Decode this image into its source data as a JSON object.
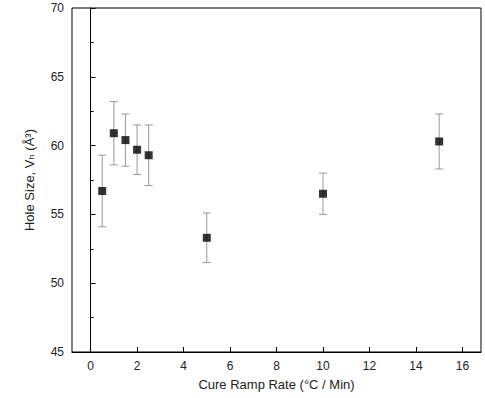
{
  "chart_data": {
    "type": "scatter",
    "x_label": "Cure Ramp Rate (°C / Min)",
    "y_label": "Hole Size, Vₕ (Å³)",
    "x": [
      0.5,
      1,
      1.5,
      2,
      2.5,
      5,
      10,
      15
    ],
    "values": [
      56.7,
      60.9,
      60.4,
      59.7,
      59.3,
      53.3,
      56.5,
      60.3
    ],
    "errors": [
      2.6,
      2.3,
      1.9,
      1.8,
      2.2,
      1.8,
      1.5,
      2.0
    ],
    "color": "#000000",
    "marker": "square",
    "xlim": [
      -0.8,
      16.8
    ],
    "xticks": [
      0,
      2,
      4,
      6,
      8,
      10,
      12,
      14,
      16
    ],
    "ylim": [
      45,
      70
    ],
    "yticks": [
      45,
      50,
      55,
      60,
      65,
      70
    ],
    "grid": false
  }
}
